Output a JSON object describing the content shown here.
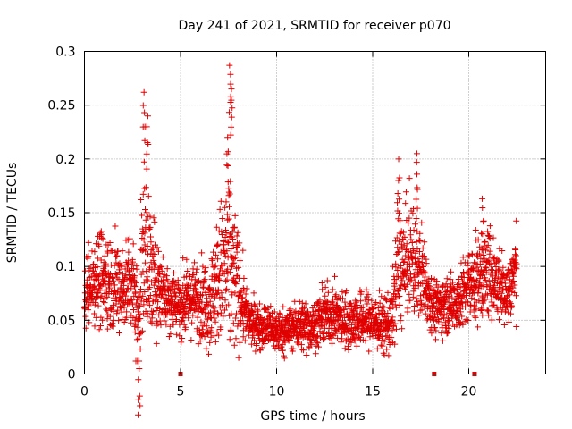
{
  "chart_data": {
    "type": "scatter",
    "title": "Day 241 of 2021, SRMTID for receiver p070",
    "xlabel": "GPS time / hours",
    "ylabel": "SRMTID / TECUs",
    "xlim": [
      0,
      24
    ],
    "ylim": [
      0,
      0.3
    ],
    "x_ticks": [
      0,
      5,
      10,
      15,
      20
    ],
    "x_tick_labels": [
      "0",
      "5",
      "10",
      "15",
      "20"
    ],
    "y_ticks": [
      0,
      0.05,
      0.1,
      0.15,
      0.2,
      0.25,
      0.3
    ],
    "y_tick_labels": [
      "0",
      "0.05",
      "0.1",
      "0.15",
      "0.2",
      "0.25",
      "0.3"
    ],
    "grid": true,
    "marker": "plus",
    "color": "#e00000",
    "envelope": {
      "hours": [
        0.0,
        0.5,
        1.0,
        1.5,
        2.0,
        2.5,
        2.8,
        3.1,
        3.5,
        4.0,
        4.5,
        5.0,
        5.5,
        6.0,
        6.5,
        7.0,
        7.3,
        7.6,
        8.0,
        8.5,
        9.0,
        9.5,
        10.0,
        10.5,
        11.0,
        11.5,
        12.0,
        12.5,
        13.0,
        13.5,
        14.0,
        14.5,
        15.0,
        15.5,
        16.0,
        16.3,
        16.7,
        17.0,
        17.3,
        17.7,
        18.0,
        18.3,
        18.7,
        19.0,
        19.5,
        20.0,
        20.5,
        21.0,
        21.5,
        22.0,
        22.5
      ],
      "center": [
        0.07,
        0.09,
        0.09,
        0.085,
        0.08,
        0.09,
        0.05,
        0.12,
        0.09,
        0.08,
        0.07,
        0.065,
        0.07,
        0.07,
        0.065,
        0.09,
        0.1,
        0.1,
        0.08,
        0.05,
        0.045,
        0.045,
        0.04,
        0.04,
        0.045,
        0.045,
        0.045,
        0.055,
        0.055,
        0.05,
        0.05,
        0.05,
        0.05,
        0.045,
        0.05,
        0.1,
        0.1,
        0.11,
        0.1,
        0.09,
        0.07,
        0.06,
        0.065,
        0.065,
        0.07,
        0.08,
        0.09,
        0.095,
        0.085,
        0.075,
        0.1
      ],
      "spread": [
        0.03,
        0.04,
        0.045,
        0.04,
        0.04,
        0.045,
        0.05,
        0.08,
        0.06,
        0.035,
        0.03,
        0.03,
        0.03,
        0.035,
        0.04,
        0.06,
        0.08,
        0.09,
        0.05,
        0.02,
        0.02,
        0.02,
        0.02,
        0.02,
        0.02,
        0.025,
        0.02,
        0.025,
        0.025,
        0.025,
        0.025,
        0.025,
        0.025,
        0.025,
        0.03,
        0.06,
        0.05,
        0.05,
        0.05,
        0.04,
        0.025,
        0.025,
        0.025,
        0.025,
        0.03,
        0.035,
        0.04,
        0.04,
        0.035,
        0.03,
        0.04
      ]
    },
    "peaks": [
      {
        "hours": 2.85,
        "value": 0.005
      },
      {
        "hours": 3.1,
        "value": 0.262
      },
      {
        "hours": 3.3,
        "value": 0.24
      },
      {
        "hours": 7.45,
        "value": 0.22
      },
      {
        "hours": 7.55,
        "value": 0.287
      },
      {
        "hours": 7.65,
        "value": 0.265
      },
      {
        "hours": 16.35,
        "value": 0.2
      },
      {
        "hours": 17.3,
        "value": 0.205
      },
      {
        "hours": 20.7,
        "value": 0.163
      }
    ],
    "zero_markers": [
      {
        "hours": 5.0,
        "value": 0.0
      },
      {
        "hours": 18.2,
        "value": 0.0
      },
      {
        "hours": 20.3,
        "value": 0.0
      }
    ],
    "data_span_hours": [
      0.0,
      22.5
    ],
    "samples_per_hour": 120
  }
}
